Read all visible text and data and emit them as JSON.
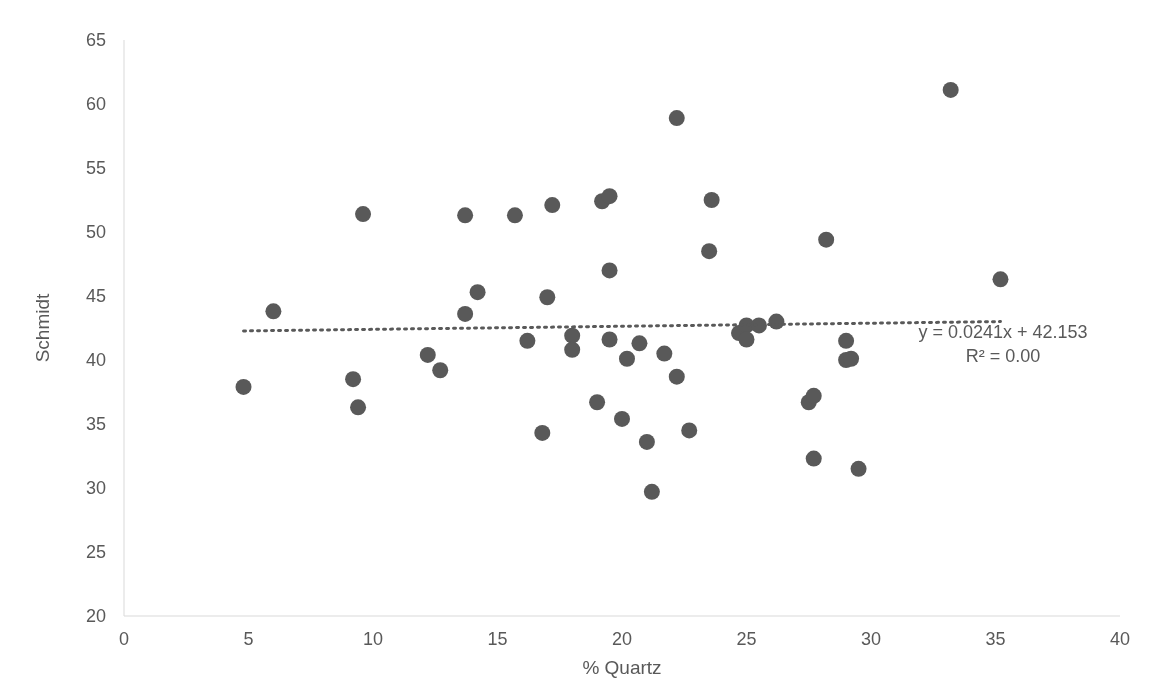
{
  "chart_data": {
    "type": "scatter",
    "xlabel": "% Quartz",
    "ylabel": "Schmidt",
    "xlim": [
      0,
      40
    ],
    "xticks": [
      0,
      5,
      10,
      15,
      20,
      25,
      30,
      35,
      40
    ],
    "ylim": [
      20,
      65
    ],
    "yticks": [
      20,
      25,
      30,
      35,
      40,
      45,
      50,
      55,
      60,
      65
    ],
    "grid": false,
    "legend": false,
    "marker": "circle",
    "series": [
      {
        "color": "#595959",
        "x": [
          4.8,
          6.0,
          9.2,
          9.4,
          9.6,
          12.2,
          12.7,
          13.7,
          13.7,
          14.2,
          15.7,
          16.2,
          16.8,
          17.0,
          17.2,
          18.0,
          18.0,
          19.0,
          19.2,
          19.5,
          19.5,
          19.5,
          20.0,
          20.2,
          20.7,
          21.0,
          21.2,
          21.7,
          22.2,
          22.2,
          22.7,
          23.5,
          23.6,
          24.7,
          25.0,
          25.0,
          25.5,
          26.2,
          27.5,
          27.7,
          27.7,
          28.2,
          29.0,
          29.0,
          29.2,
          29.5,
          33.2,
          35.2
        ],
        "values": [
          37.9,
          43.8,
          38.5,
          36.3,
          51.4,
          40.4,
          39.2,
          43.6,
          51.3,
          45.3,
          51.3,
          41.5,
          34.3,
          44.9,
          52.1,
          41.9,
          40.8,
          36.7,
          52.4,
          52.8,
          47.0,
          41.6,
          35.4,
          40.1,
          41.3,
          33.6,
          29.7,
          40.5,
          58.9,
          38.7,
          34.5,
          48.5,
          52.5,
          42.1,
          42.7,
          41.6,
          42.7,
          43.0,
          36.7,
          37.2,
          32.3,
          49.4,
          41.5,
          40.0,
          40.1,
          31.5,
          61.1,
          46.3
        ]
      },
      {
        "type": "line",
        "color": "#595959",
        "marker": "none",
        "line_style": "dotted",
        "x": [
          4.8,
          35.2
        ],
        "values": [
          42.27,
          43.0
        ]
      }
    ],
    "annotations": [
      "y = 0.0241x + 42.153",
      "R² = 0.00"
    ]
  }
}
